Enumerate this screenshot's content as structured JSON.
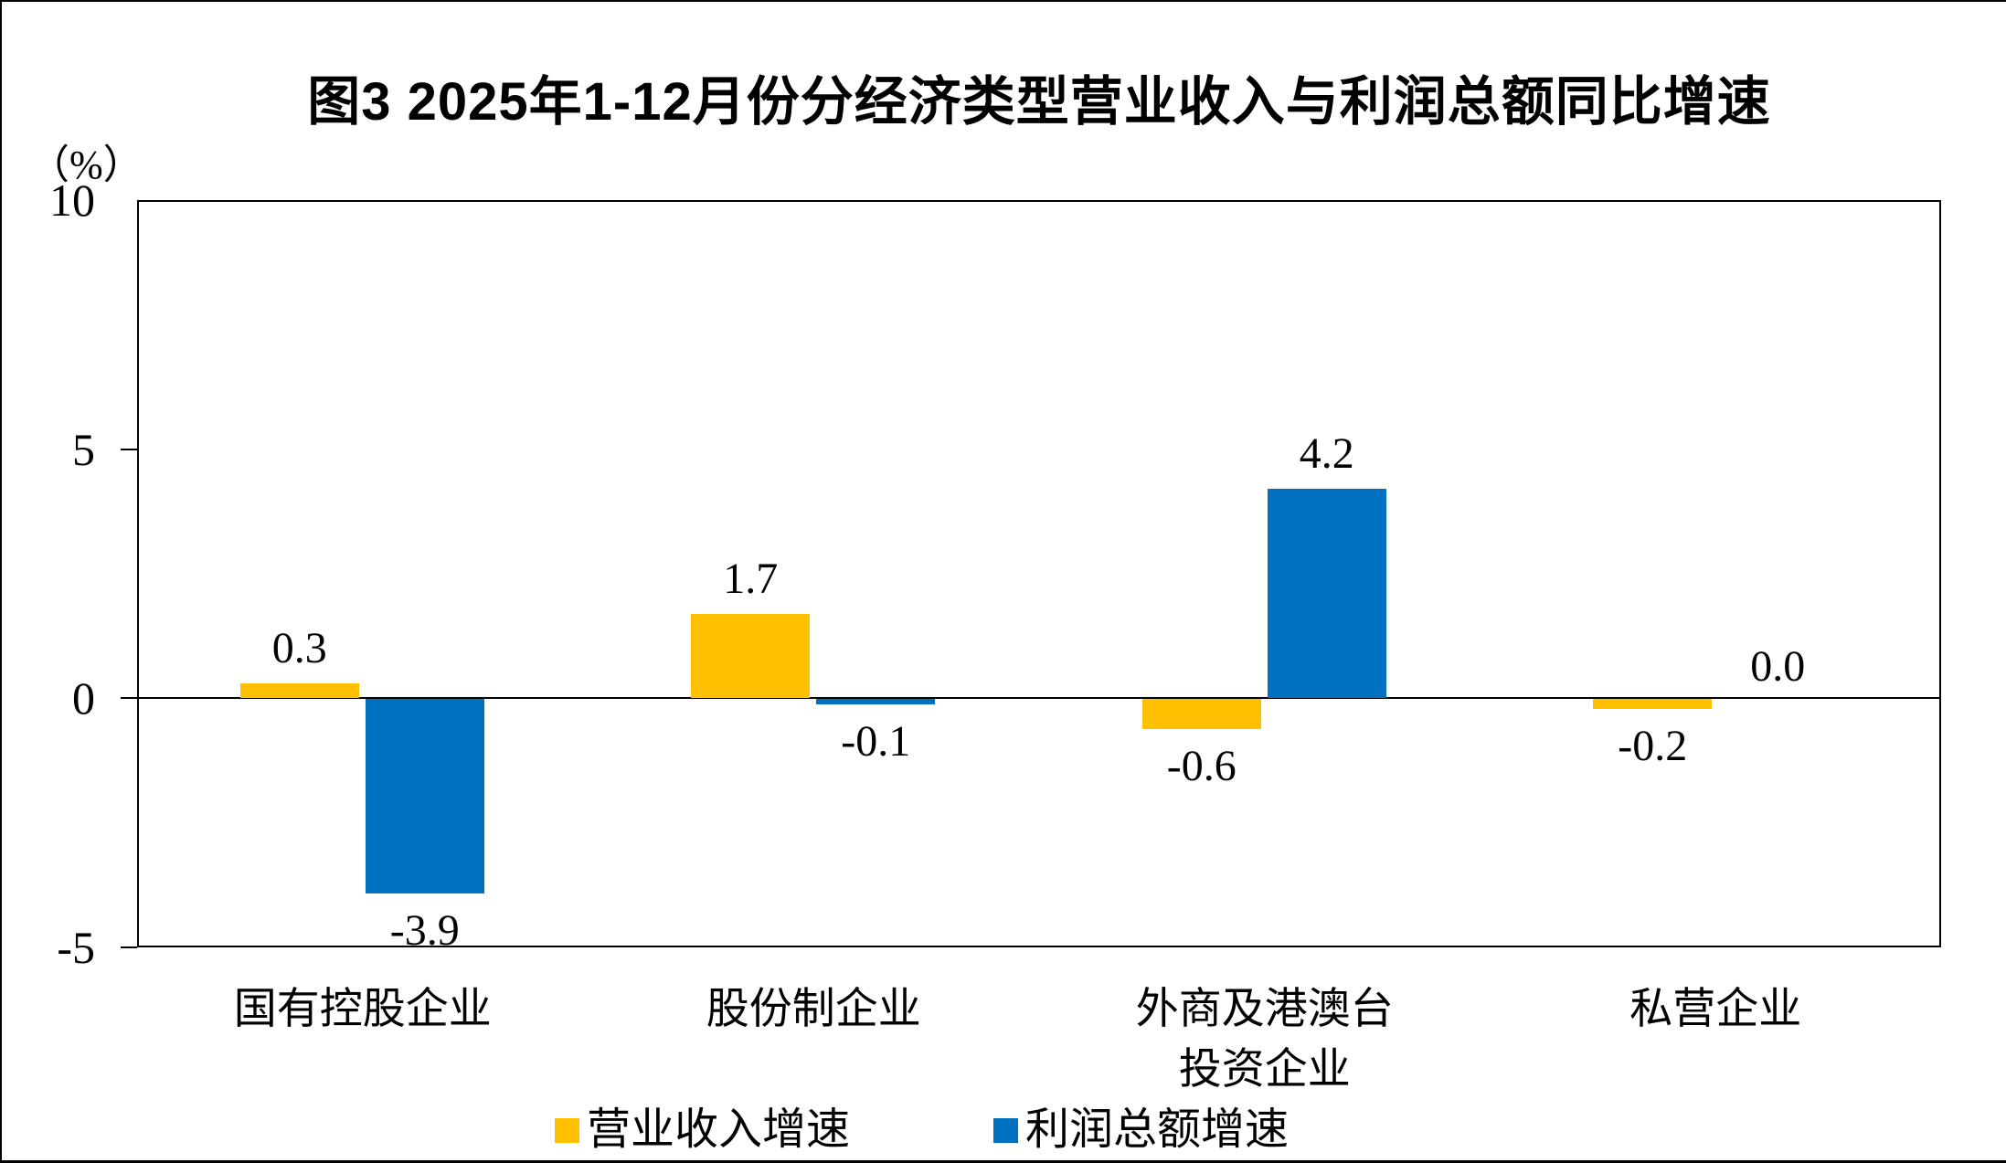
{
  "figure": {
    "title": "图3  2025年1-12月份分经济类型营业收入与利润总额同比增速",
    "y_axis_unit": "（%）"
  },
  "chart_data": {
    "type": "bar",
    "title": "图3  2025年1-12月份分经济类型营业收入与利润总额同比增速",
    "ylabel": "（%）",
    "xlabel": "",
    "ylim": [
      -5,
      10
    ],
    "yticks": [
      10,
      5,
      0,
      -5
    ],
    "grid": false,
    "legend_position": "bottom",
    "categories": [
      "国有控股企业",
      "股份制企业",
      "外商及港澳台投资企业",
      "私营企业"
    ],
    "categories_display": [
      [
        "国有控股企业"
      ],
      [
        "股份制企业"
      ],
      [
        "外商及港澳台",
        "投资企业"
      ],
      [
        "私营企业"
      ]
    ],
    "series": [
      {
        "name": "营业收入增速",
        "color": "#FFC000",
        "values": [
          0.3,
          1.7,
          -0.6,
          -0.2
        ]
      },
      {
        "name": "利润总额增速",
        "color": "#0070C0",
        "values": [
          -3.9,
          -0.1,
          4.2,
          0.0
        ]
      }
    ],
    "data_label_decimals": 1
  }
}
